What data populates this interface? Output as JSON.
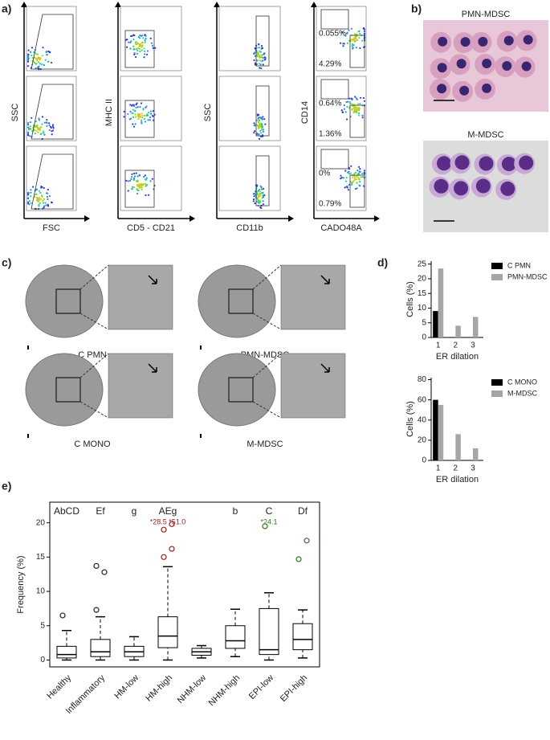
{
  "figure": {
    "a": {
      "label": "a)",
      "axes": [
        {
          "y": "SSC",
          "x": "FSC"
        },
        {
          "y": "MHC II",
          "x": "CD5 - CD21"
        },
        {
          "y": "SSC",
          "x": "CD11b"
        },
        {
          "y": "CD14",
          "x": "CADO48A"
        }
      ],
      "gate_labels": [
        [
          "0.055%",
          "4.29%"
        ],
        [
          "0.64%",
          "1.36%"
        ],
        [
          "0%",
          "0.79%"
        ]
      ]
    },
    "b": {
      "label": "b)",
      "titles": [
        "PMN-MDSC",
        "M-MDSC"
      ]
    },
    "c": {
      "label": "c)",
      "captions": [
        "C PMN",
        "PMN-MDSC",
        "C MONO",
        "M-MDSC"
      ]
    },
    "d": {
      "label": "d)"
    },
    "e": {
      "label": "e)"
    }
  },
  "chart_data": [
    {
      "type": "bar",
      "ylabel": "Cells (%)",
      "xlabel": "ER dilation",
      "categories": [
        "1",
        "2",
        "3"
      ],
      "series": [
        {
          "name": "C PMN",
          "color": "#000000",
          "values": [
            9,
            0,
            0
          ]
        },
        {
          "name": "PMN-MDSC",
          "color": "#a6a6a6",
          "values": [
            23.5,
            4,
            7
          ]
        }
      ],
      "ylim": [
        0,
        26
      ],
      "yticks": [
        0,
        5,
        10,
        15,
        20,
        25
      ]
    },
    {
      "type": "bar",
      "ylabel": "Cells (%)",
      "xlabel": "ER dilation",
      "categories": [
        "1",
        "2",
        "3"
      ],
      "series": [
        {
          "name": "C MONO",
          "color": "#000000",
          "values": [
            60,
            0,
            0
          ]
        },
        {
          "name": "M-MDSC",
          "color": "#a6a6a6",
          "values": [
            55,
            26,
            12
          ]
        }
      ],
      "ylim": [
        0,
        82
      ],
      "yticks": [
        0,
        20,
        40,
        60,
        80
      ]
    },
    {
      "type": "box",
      "ylabel": "Frequency (%)",
      "categories": [
        "Healthy",
        "Inflammatory",
        "HM-low",
        "HM-high",
        "NHM-low",
        "NHM-high",
        "EPI-low",
        "EPI-high"
      ],
      "letters": [
        "AbCD",
        "Ef",
        "g",
        "AEg",
        null,
        "b",
        "C",
        "Df"
      ],
      "annotations": [
        null,
        null,
        null,
        "*28.5 *51.0",
        null,
        null,
        "*24.1",
        null
      ],
      "colors": [
        "#222222",
        "#222222",
        "#9b1c1c",
        "#9b1c1c",
        "#26338a",
        "#26338a",
        "#2e7d1e",
        "#2e7d1e"
      ],
      "boxes": [
        {
          "whisker_low": 0,
          "q1": 0.3,
          "median": 0.8,
          "q3": 2,
          "whisker_high": 4.3,
          "outliers": [
            6.5
          ]
        },
        {
          "whisker_low": 0,
          "q1": 0.5,
          "median": 1.2,
          "q3": 3,
          "whisker_high": 6.3,
          "outliers": [
            7.3,
            12.8,
            13.7
          ]
        },
        {
          "whisker_low": 0,
          "q1": 0.5,
          "median": 1.2,
          "q3": 2,
          "whisker_high": 3.4,
          "outliers": []
        },
        {
          "whisker_low": 0,
          "q1": 1.8,
          "median": 3.5,
          "q3": 6.3,
          "whisker_high": 13.6,
          "outliers": [
            15,
            16.2,
            19,
            19.8
          ]
        },
        {
          "whisker_low": 0.3,
          "q1": 0.7,
          "median": 1.2,
          "q3": 1.7,
          "whisker_high": 2.1,
          "outliers": []
        },
        {
          "whisker_low": 0.5,
          "q1": 1.7,
          "median": 2.8,
          "q3": 5,
          "whisker_high": 7.4,
          "outliers": []
        },
        {
          "whisker_low": 0,
          "q1": 0.8,
          "median": 1.5,
          "q3": 7.5,
          "whisker_high": 9.8,
          "outliers": [
            19.5
          ]
        },
        {
          "whisker_low": 0.3,
          "q1": 1.5,
          "median": 3,
          "q3": 5.3,
          "whisker_high": 7.3,
          "outliers": [
            14.7,
            17.4
          ]
        }
      ],
      "ylim": [
        -1,
        23
      ],
      "yticks": [
        0,
        5,
        10,
        15,
        20
      ]
    }
  ]
}
